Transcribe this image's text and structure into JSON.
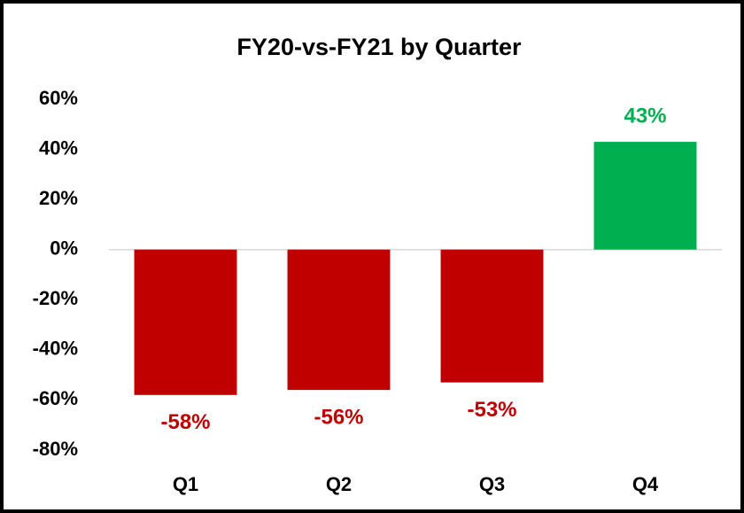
{
  "chart_data": {
    "type": "bar",
    "title": "FY20-vs-FY21 by Quarter",
    "categories": [
      "Q1",
      "Q2",
      "Q3",
      "Q4"
    ],
    "values": [
      -58,
      -56,
      -53,
      43
    ],
    "value_labels": [
      "-58%",
      "-56%",
      "-53%",
      "43%"
    ],
    "colors": [
      "#c00000",
      "#c00000",
      "#c00000",
      "#00b050"
    ],
    "ylim": [
      -80,
      60
    ],
    "yticks": [
      {
        "value": 60,
        "label": "60%"
      },
      {
        "value": 40,
        "label": "40%"
      },
      {
        "value": 20,
        "label": "20%"
      },
      {
        "value": 0,
        "label": "0%"
      },
      {
        "value": -20,
        "label": "-20%"
      },
      {
        "value": -40,
        "label": "-40%"
      },
      {
        "value": -60,
        "label": "-60%"
      },
      {
        "value": -80,
        "label": "-80%"
      }
    ],
    "grid": false
  }
}
